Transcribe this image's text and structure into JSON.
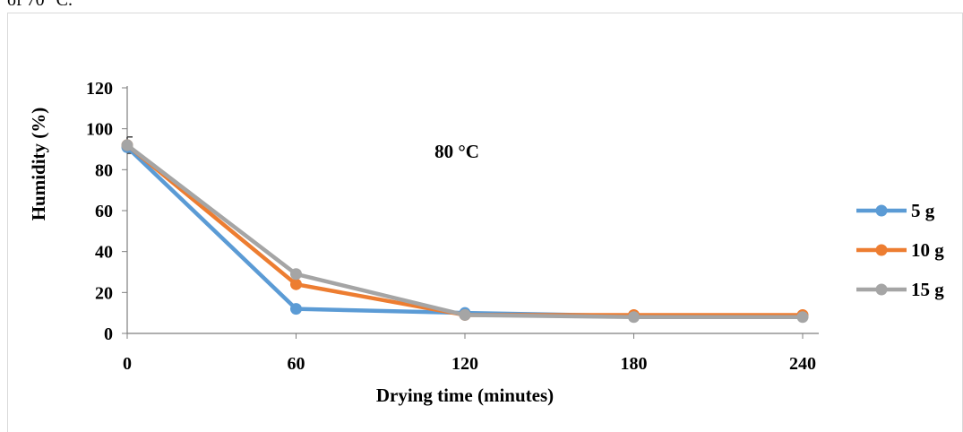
{
  "page": {
    "top_text_fragment": "of 70 °C."
  },
  "chart_data": {
    "type": "line",
    "title": "",
    "annotation": "80 °C",
    "xlabel": "Drying time (minutes)",
    "ylabel": "Humidity (%)",
    "x": [
      0,
      60,
      120,
      180,
      240
    ],
    "xlim": [
      0,
      240
    ],
    "ylim": [
      0,
      120
    ],
    "yticks": [
      0,
      20,
      40,
      60,
      80,
      100,
      120
    ],
    "grid": false,
    "legend_position": "right",
    "series": [
      {
        "name": "5 g",
        "color": "#5B9BD5",
        "values": [
          91,
          12,
          10,
          8.5,
          8.5
        ]
      },
      {
        "name": "10 g",
        "color": "#ED7D31",
        "values": [
          92,
          24,
          9,
          9,
          9
        ]
      },
      {
        "name": "15 g",
        "color": "#A5A5A5",
        "values": [
          92,
          29,
          9,
          8,
          8
        ]
      }
    ]
  }
}
